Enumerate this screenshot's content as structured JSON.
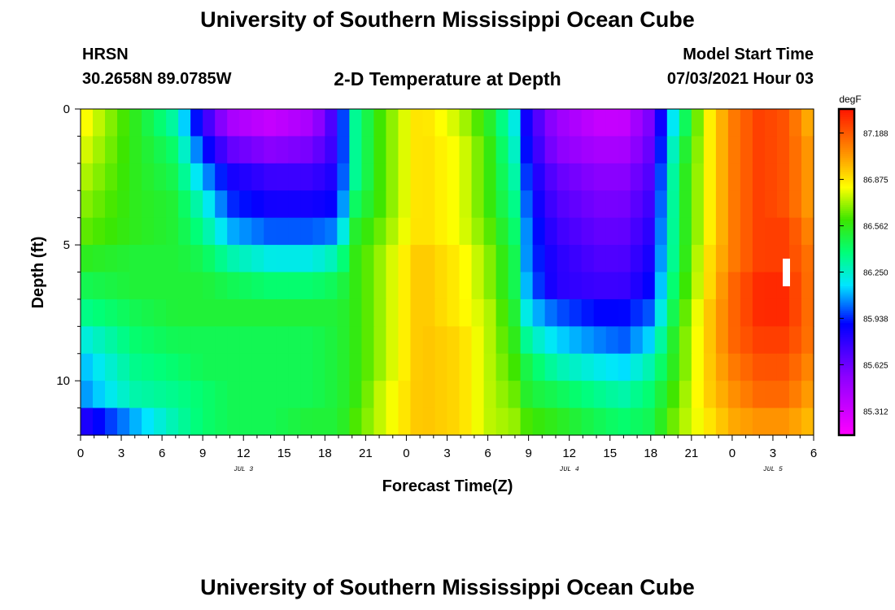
{
  "header": {
    "title": "University of Southern Mississippi Ocean Cube",
    "station": "HRSN",
    "coords": "30.2658N  89.0785W",
    "subtitle": "2-D Temperature at Depth",
    "model_start_label": "Model Start Time",
    "model_start_value": "07/03/2021 Hour 03"
  },
  "footer": {
    "title": "University of Southern Mississippi Ocean Cube"
  },
  "chart_data": {
    "type": "heatmap",
    "title": "2-D Temperature at Depth",
    "xlabel": "Forecast Time(Z)",
    "ylabel": "Depth (ft)",
    "x_tick_labels": [
      "0",
      "3",
      "6",
      "9",
      "12",
      "15",
      "18",
      "21",
      "0",
      "3",
      "6",
      "9",
      "12",
      "15",
      "18",
      "21",
      "0",
      "3",
      "6"
    ],
    "x_range_hours": [
      0,
      54
    ],
    "date_labels": [
      {
        "text": "JUL 3",
        "hour": 12
      },
      {
        "text": "JUL 4",
        "hour": 36
      },
      {
        "text": "JUL 5",
        "hour": 51
      }
    ],
    "y_tick_labels": [
      "0",
      "5",
      "10"
    ],
    "y_range_ft": [
      0,
      12
    ],
    "colorbar": {
      "unit": "degF",
      "tick_labels": [
        "87.188",
        "86.875",
        "86.562",
        "86.250",
        "85.938",
        "85.625",
        "85.312"
      ],
      "tick_values": [
        87.188,
        86.875,
        86.562,
        86.25,
        85.938,
        85.625,
        85.312
      ],
      "range": [
        85.15,
        87.35
      ]
    },
    "depth_levels_ft": [
      0.5,
      1.5,
      2.5,
      3.5,
      4.5,
      5.5,
      6.5,
      7.5,
      8.5,
      9.5,
      10.5,
      11.5
    ],
    "time_knots_hours": [
      0,
      4,
      7,
      9,
      11,
      14,
      17,
      19,
      20,
      22,
      25,
      28,
      30,
      32,
      33,
      35,
      38,
      40,
      42,
      44,
      46,
      48,
      50,
      52,
      54
    ],
    "values_degF": [
      [
        86.85,
        86.55,
        86.3,
        85.8,
        85.45,
        85.35,
        85.45,
        85.8,
        86.3,
        86.6,
        86.9,
        86.75,
        86.55,
        86.2,
        85.8,
        85.5,
        85.35,
        85.35,
        85.6,
        86.3,
        86.8,
        87.1,
        87.25,
        87.2,
        86.95
      ],
      [
        86.8,
        86.55,
        86.4,
        85.95,
        85.65,
        85.55,
        85.6,
        85.8,
        86.3,
        86.6,
        86.9,
        86.8,
        86.6,
        86.25,
        85.85,
        85.55,
        85.45,
        85.45,
        85.65,
        86.4,
        86.8,
        87.1,
        87.25,
        87.2,
        87.0
      ],
      [
        86.75,
        86.55,
        86.45,
        86.1,
        85.85,
        85.75,
        85.75,
        85.85,
        86.3,
        86.6,
        86.9,
        86.8,
        86.6,
        86.3,
        85.9,
        85.65,
        85.55,
        85.55,
        85.7,
        86.45,
        86.8,
        87.1,
        87.25,
        87.2,
        87.0
      ],
      [
        86.7,
        86.55,
        86.5,
        86.25,
        85.95,
        85.85,
        85.85,
        85.9,
        86.4,
        86.6,
        86.9,
        86.8,
        86.6,
        86.35,
        85.95,
        85.7,
        85.6,
        85.6,
        85.75,
        86.45,
        86.8,
        87.1,
        87.25,
        87.2,
        87.0
      ],
      [
        86.65,
        86.55,
        86.5,
        86.35,
        86.1,
        86.0,
        86.0,
        86.05,
        86.5,
        86.65,
        86.9,
        86.8,
        86.65,
        86.4,
        86.0,
        85.75,
        85.65,
        85.65,
        85.8,
        86.45,
        86.8,
        87.1,
        87.25,
        87.25,
        87.05
      ],
      [
        86.55,
        86.5,
        86.5,
        86.45,
        86.3,
        86.2,
        86.2,
        86.3,
        86.55,
        86.7,
        86.95,
        86.85,
        86.7,
        86.45,
        86.0,
        85.8,
        85.7,
        85.7,
        85.85,
        86.45,
        86.85,
        87.1,
        87.25,
        87.25,
        87.1
      ],
      [
        86.45,
        86.5,
        86.5,
        86.5,
        86.45,
        86.4,
        86.4,
        86.45,
        86.55,
        86.7,
        86.95,
        86.85,
        86.7,
        86.45,
        86.05,
        85.8,
        85.75,
        85.75,
        85.9,
        86.5,
        86.85,
        87.15,
        87.3,
        87.3,
        87.1
      ],
      [
        86.35,
        86.45,
        86.5,
        86.5,
        86.5,
        86.5,
        86.5,
        86.5,
        86.55,
        86.7,
        86.95,
        86.85,
        86.75,
        86.5,
        86.15,
        86.0,
        85.9,
        85.9,
        86.0,
        86.55,
        86.9,
        87.15,
        87.3,
        87.3,
        87.1
      ],
      [
        86.2,
        86.4,
        86.45,
        86.45,
        86.45,
        86.45,
        86.45,
        86.5,
        86.55,
        86.7,
        86.95,
        86.9,
        86.75,
        86.55,
        86.3,
        86.15,
        86.05,
        86.0,
        86.15,
        86.6,
        86.9,
        87.15,
        87.25,
        87.25,
        87.1
      ],
      [
        86.1,
        86.35,
        86.4,
        86.45,
        86.45,
        86.45,
        86.45,
        86.5,
        86.55,
        86.7,
        86.95,
        86.9,
        86.75,
        86.6,
        86.45,
        86.3,
        86.2,
        86.15,
        86.3,
        86.6,
        86.9,
        87.1,
        87.2,
        87.2,
        87.05
      ],
      [
        86.05,
        86.3,
        86.35,
        86.4,
        86.45,
        86.45,
        86.45,
        86.5,
        86.55,
        86.75,
        86.95,
        86.9,
        86.75,
        86.65,
        86.5,
        86.45,
        86.35,
        86.3,
        86.4,
        86.65,
        86.9,
        87.05,
        87.15,
        87.15,
        87.0
      ],
      [
        85.8,
        86.1,
        86.3,
        86.4,
        86.45,
        86.45,
        86.5,
        86.5,
        86.6,
        86.75,
        86.95,
        86.9,
        86.75,
        86.7,
        86.6,
        86.55,
        86.45,
        86.4,
        86.45,
        86.7,
        86.85,
        87.0,
        87.05,
        87.05,
        86.95
      ]
    ]
  }
}
